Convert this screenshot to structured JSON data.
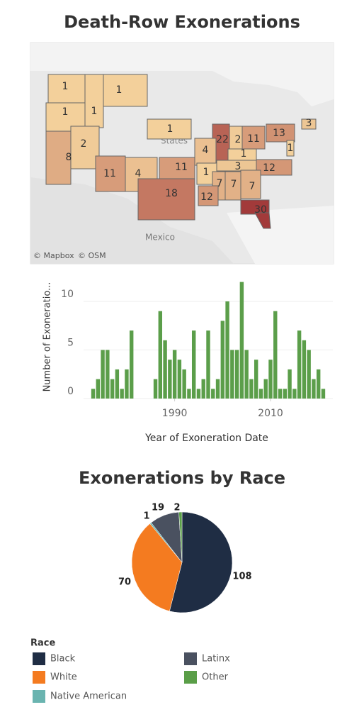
{
  "chart_data": [
    {
      "type": "map",
      "title": "Death-Row Exonerations",
      "values": [
        1,
        1,
        1,
        1,
        1,
        8,
        2,
        11,
        4,
        18,
        11,
        22,
        2,
        11,
        13,
        3,
        4,
        1,
        1,
        1,
        3,
        12,
        7,
        7,
        7,
        12,
        30
      ],
      "color_range": [
        "#f3d09b",
        "#a23a3a"
      ],
      "annotations": [
        "© Mapbox",
        "© OSM",
        "Mexico",
        "States"
      ]
    },
    {
      "type": "bar",
      "xlabel": "Year of Exoneration Date",
      "ylabel": "Number of Exoneratio...",
      "x": [
        1973,
        1974,
        1975,
        1976,
        1977,
        1978,
        1979,
        1980,
        1981,
        1986,
        1987,
        1988,
        1989,
        1990,
        1991,
        1992,
        1993,
        1994,
        1995,
        1996,
        1997,
        1998,
        1999,
        2000,
        2001,
        2002,
        2003,
        2004,
        2005,
        2006,
        2007,
        2008,
        2009,
        2010,
        2011,
        2012,
        2013,
        2014,
        2015,
        2016,
        2017,
        2018,
        2019,
        2020,
        2021
      ],
      "values": [
        1,
        2,
        5,
        5,
        2,
        3,
        1,
        3,
        7,
        2,
        9,
        6,
        4,
        5,
        4,
        3,
        1,
        7,
        1,
        2,
        7,
        1,
        2,
        8,
        10,
        5,
        5,
        12,
        5,
        2,
        4,
        1,
        2,
        4,
        9,
        1,
        1,
        3,
        1,
        7,
        6,
        5,
        2,
        3,
        1
      ],
      "color": "#5b9e4a",
      "xlim": [
        1971,
        2023
      ],
      "xticks": [
        1990,
        2010
      ],
      "ylim": [
        0,
        12.6
      ],
      "yticks": [
        0,
        5,
        10
      ],
      "grid": true
    },
    {
      "type": "pie",
      "title": "Exonerations by Race",
      "categories": [
        "Black",
        "White",
        "Native American",
        "Latinx",
        "Other"
      ],
      "values": [
        108,
        70,
        1,
        19,
        2
      ],
      "colors": [
        "#1f2d44",
        "#f47b20",
        "#6ab4b0",
        "#4a5160",
        "#5a9e48"
      ],
      "legend_title": "Race"
    }
  ]
}
